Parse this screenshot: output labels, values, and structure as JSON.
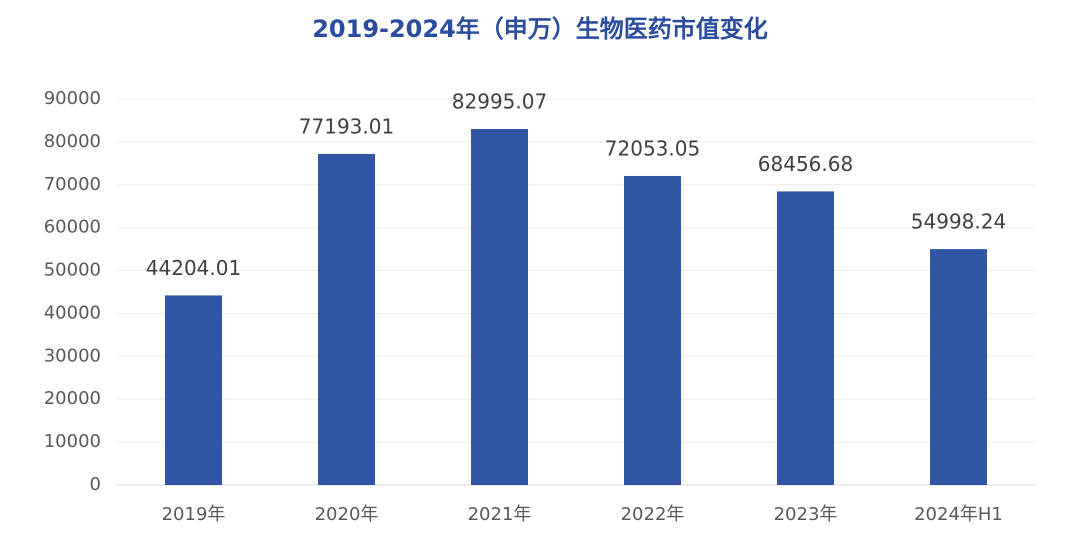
{
  "chart_data": {
    "type": "bar",
    "title": "2019-2024年（申万）生物医药市值变化",
    "categories": [
      "2019年",
      "2020年",
      "2021年",
      "2022年",
      "2023年",
      "2024年H1"
    ],
    "values": [
      44204.01,
      77193.01,
      82995.07,
      72053.05,
      68456.68,
      54998.24
    ],
    "color": "#2f55a4",
    "ylim": [
      0,
      90000
    ],
    "yticks": [
      0,
      10000,
      20000,
      30000,
      40000,
      50000,
      60000,
      70000,
      80000,
      90000
    ],
    "grid": true
  }
}
